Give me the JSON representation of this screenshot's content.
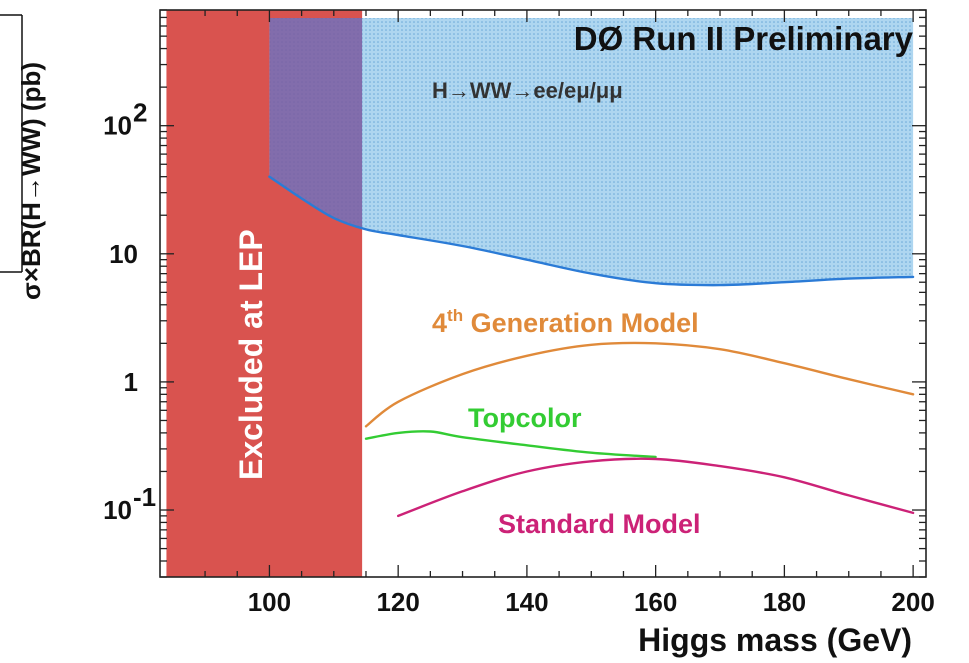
{
  "chart_data": {
    "type": "line",
    "title": "DØ Run II Preliminary",
    "subtitle": "H→WW→ee/eμ/μμ",
    "xlabel": "Higgs mass (GeV)",
    "ylabel": "σ×BR(H→WW) (pb)",
    "xlim": [
      83,
      202
    ],
    "ylim": [
      0.03,
      800
    ],
    "yscale": "log",
    "grid": false,
    "x_ticks": [
      {
        "value": 100,
        "label": "100"
      },
      {
        "value": 120,
        "label": "120"
      },
      {
        "value": 140,
        "label": "140"
      },
      {
        "value": 160,
        "label": "160"
      },
      {
        "value": 180,
        "label": "180"
      },
      {
        "value": 200,
        "label": "200"
      }
    ],
    "y_ticks": [
      {
        "value": 0.1,
        "label": "10",
        "exponent": "-1"
      },
      {
        "value": 1,
        "label": "1",
        "exponent": ""
      },
      {
        "value": 10,
        "label": "10",
        "exponent": ""
      },
      {
        "value": 100,
        "label": "10",
        "exponent": "2"
      }
    ],
    "excluded_region": {
      "label": "Excluded at LEP",
      "x_from": 84,
      "x_to": 114.4,
      "color": "#d9534f"
    },
    "exclusion_limit": {
      "color": "#2b7bd6",
      "fill": "#a9d3ef",
      "x": [
        100,
        105,
        110,
        115,
        120,
        130,
        140,
        150,
        160,
        170,
        180,
        190,
        200
      ],
      "y": [
        40,
        27,
        19,
        15.5,
        14,
        11.5,
        9,
        7,
        5.9,
        5.7,
        6.0,
        6.4,
        6.6
      ]
    },
    "series": [
      {
        "name": "4th Generation Model",
        "color": "#e08a3a",
        "x": [
          115,
          120,
          130,
          140,
          150,
          160,
          170,
          180,
          190,
          200
        ],
        "y": [
          0.45,
          0.7,
          1.15,
          1.6,
          1.95,
          2.0,
          1.8,
          1.4,
          1.05,
          0.8
        ]
      },
      {
        "name": "Topcolor",
        "color": "#33cc33",
        "x": [
          115,
          120,
          125,
          130,
          140,
          150,
          160
        ],
        "y": [
          0.36,
          0.4,
          0.41,
          0.37,
          0.32,
          0.28,
          0.26
        ]
      },
      {
        "name": "Standard Model",
        "color": "#cc2277",
        "x": [
          120,
          130,
          140,
          150,
          160,
          170,
          180,
          190,
          200
        ],
        "y": [
          0.09,
          0.14,
          0.2,
          0.24,
          0.25,
          0.22,
          0.18,
          0.13,
          0.095
        ]
      }
    ],
    "label_4th_main": "4",
    "label_4th_sup": "th",
    "label_4th_rest": " Generation Model"
  }
}
